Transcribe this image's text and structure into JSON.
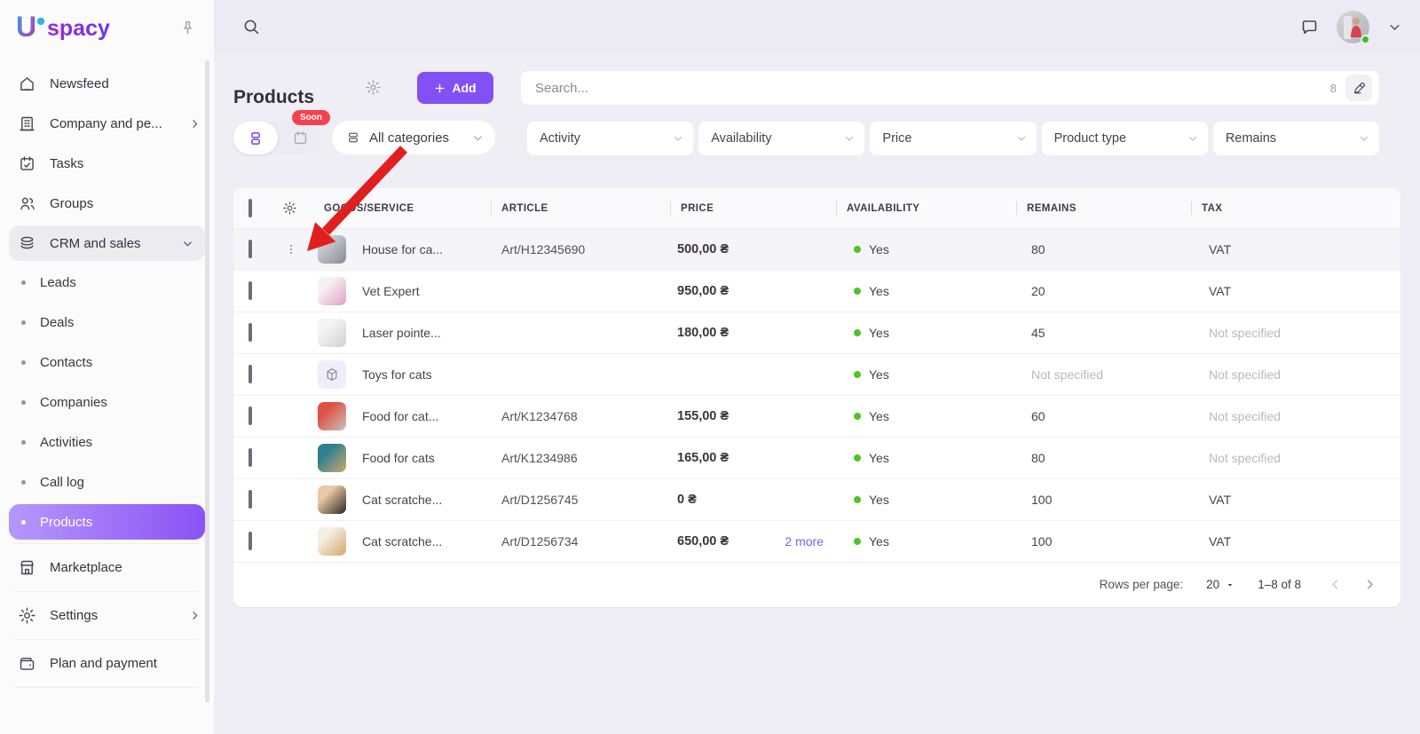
{
  "brand": {
    "mark": "U",
    "text": "spacy",
    "mark_color1": "#2FA8E9",
    "mark_color2": "#C42BB2",
    "text_color1": "#8B2BE0",
    "text_color2": "#6A35F2"
  },
  "topbar": {
    "search_icon": "search",
    "chat_icon": "chat",
    "avatar": "user-photo",
    "caret_icon": "chevron-down",
    "status_color": "#35C31E"
  },
  "sidebar": {
    "pin_icon": "pin",
    "main": [
      {
        "label": "Newsfeed",
        "icon": "home"
      },
      {
        "label": "Company and pe...",
        "icon": "building",
        "chevron": "right"
      },
      {
        "label": "Tasks",
        "icon": "calendar"
      },
      {
        "label": "Groups",
        "icon": "users"
      },
      {
        "label": "CRM and sales",
        "icon": "database",
        "chevron": "down",
        "state": "expanded"
      }
    ],
    "crm_items": [
      {
        "label": "Leads"
      },
      {
        "label": "Deals"
      },
      {
        "label": "Contacts"
      },
      {
        "label": "Companies"
      },
      {
        "label": "Activities"
      },
      {
        "label": "Call log"
      },
      {
        "label": "Products",
        "active": true
      }
    ],
    "bottom": [
      {
        "label": "Marketplace",
        "icon": "store"
      },
      {
        "label": "Settings",
        "icon": "gear",
        "chevron": "right"
      },
      {
        "label": "Plan and payment",
        "icon": "wallet"
      }
    ]
  },
  "header": {
    "title": "Products",
    "settings_icon": "gear",
    "add_label": "Add",
    "search_placeholder": "Search...",
    "search_count": "8",
    "erase_icon": "eraser"
  },
  "toolbar": {
    "soon_badge": "Soon",
    "view_icons": [
      "list-rows",
      "calendar"
    ],
    "categories_label": "All categories",
    "filters": [
      {
        "label": "Activity"
      },
      {
        "label": "Availability"
      },
      {
        "label": "Price"
      },
      {
        "label": "Product type"
      },
      {
        "label": "Remains"
      }
    ]
  },
  "table": {
    "columns": [
      "GOODS/SERVICE",
      "ARTICLE",
      "PRICE",
      "AVAILABILITY",
      "REMAINS",
      "TAX"
    ],
    "availability_dot_color": "#4FC424",
    "rows": [
      {
        "name": "House for ca...",
        "article": "Art/H12345690",
        "price": "500,00 ₴",
        "more": "",
        "availability": "Yes",
        "remains": "80",
        "tax": "VAT",
        "remains_muted": false,
        "tax_muted": false,
        "hovered": true,
        "thumb": {
          "kind": "photo",
          "name": "cat-house-photo",
          "colors": [
            "#c7c9cd",
            "#878c95"
          ]
        }
      },
      {
        "name": "Vet Expert",
        "article": "",
        "price": "950,00 ₴",
        "more": "",
        "availability": "Yes",
        "remains": "20",
        "tax": "VAT",
        "remains_muted": false,
        "tax_muted": false,
        "hovered": false,
        "thumb": {
          "kind": "photo",
          "name": "vet-expert-photo",
          "colors": [
            "#f7f1f4",
            "#e39ec6"
          ]
        }
      },
      {
        "name": "Laser pointe...",
        "article": "",
        "price": "180,00 ₴",
        "more": "",
        "availability": "Yes",
        "remains": "45",
        "tax": "Not specified",
        "remains_muted": false,
        "tax_muted": true,
        "hovered": false,
        "thumb": {
          "kind": "photo",
          "name": "laser-pointer-photo",
          "colors": [
            "#f4f4f5",
            "#cfcfd4"
          ]
        }
      },
      {
        "name": "Toys for cats",
        "article": "",
        "price": "",
        "more": "",
        "availability": "Yes",
        "remains": "Not specified",
        "tax": "Not specified",
        "remains_muted": true,
        "tax_muted": true,
        "hovered": false,
        "thumb": {
          "kind": "placeholder",
          "name": "cube-placeholder",
          "colors": [
            "#EFEDFA",
            "#EFEDFA"
          ]
        }
      },
      {
        "name": "Food for cat...",
        "article": "Art/K1234768",
        "price": "155,00 ₴",
        "more": "",
        "availability": "Yes",
        "remains": "60",
        "tax": "Not specified",
        "remains_muted": false,
        "tax_muted": true,
        "hovered": false,
        "thumb": {
          "kind": "photo",
          "name": "cat-food-photo",
          "colors": [
            "#dd5244",
            "#c9c3bc"
          ]
        }
      },
      {
        "name": "Food for cats",
        "article": "Art/K1234986",
        "price": "165,00 ₴",
        "more": "",
        "availability": "Yes",
        "remains": "80",
        "tax": "Not specified",
        "remains_muted": false,
        "tax_muted": true,
        "hovered": false,
        "thumb": {
          "kind": "photo",
          "name": "cat-food-teal-photo",
          "colors": [
            "#2e7f8f",
            "#c9a86c"
          ]
        }
      },
      {
        "name": "Cat scratche...",
        "article": "Art/D1256745",
        "price": "0 ₴",
        "more": "",
        "availability": "Yes",
        "remains": "100",
        "tax": "VAT",
        "remains_muted": false,
        "tax_muted": false,
        "hovered": false,
        "thumb": {
          "kind": "photo",
          "name": "cat-scratcher-photo",
          "colors": [
            "#ecc9a4",
            "#2c2724"
          ]
        }
      },
      {
        "name": "Cat scratche...",
        "article": "Art/D1256734",
        "price": "650,00 ₴",
        "more": "2 more",
        "availability": "Yes",
        "remains": "100",
        "tax": "VAT",
        "remains_muted": false,
        "tax_muted": false,
        "hovered": false,
        "thumb": {
          "kind": "photo",
          "name": "cardboard-scratcher-photo",
          "colors": [
            "#f5eee3",
            "#d2a868"
          ]
        }
      }
    ]
  },
  "pagination": {
    "rows_per_page_label": "Rows per page:",
    "rows_per_page_value": "20",
    "range": "1–8 of 8",
    "prev_icon": "chevron-left",
    "next_icon": "chevron-right"
  },
  "annotation": {
    "arrow_color": "#E02020"
  }
}
